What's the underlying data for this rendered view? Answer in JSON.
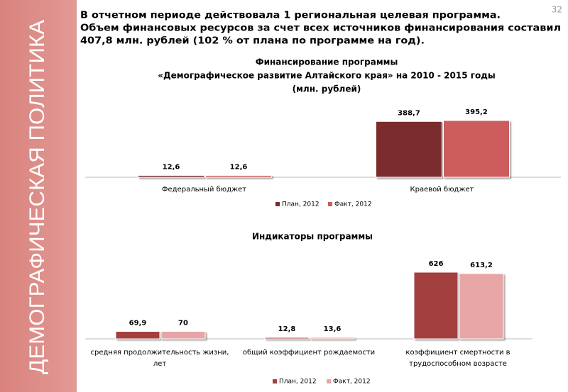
{
  "slide": {
    "section": "ДЕМОГРАФИЧЕСКАЯ ПОЛИТИКА",
    "page_number": "32",
    "text_lines": [
      "В отчетном периоде действовала 1 региональная целевая программа.",
      "Объем финансовых ресурсов за счет всех источников финансирования составил",
      "407,8 млн. рублей (102 % от плана по программе на год)."
    ]
  },
  "chart_data": [
    {
      "type": "bar",
      "title_lines": [
        "Финансирование программы",
        "«Демографическое развитие Алтайского края» на 2010 - 2015 годы",
        "(млн. рублей)"
      ],
      "categories": [
        "Федеральный бюджет",
        "Краевой бюджет"
      ],
      "series": [
        {
          "name": "План, 2012",
          "color": "#7b2c2c",
          "values": [
            12.6,
            388.7
          ],
          "value_labels": [
            "12,6",
            "388,7"
          ]
        },
        {
          "name": "Факт, 2012",
          "color": "#cd5c5c",
          "values": [
            12.6,
            395.2
          ],
          "value_labels": [
            "12,6",
            "395,2"
          ]
        }
      ]
    },
    {
      "type": "bar",
      "title_lines": [
        "Индикаторы программы"
      ],
      "categories": [
        "средняя продолжительность жизни, лет",
        "общий коэффициент рождаемости",
        "коэффициент смертности в трудоспособном возрасте"
      ],
      "series": [
        {
          "name": "План, 2012",
          "color": "#a33f3f",
          "values": [
            69.9,
            12.8,
            626
          ],
          "value_labels": [
            "69,9",
            "12,8",
            "626"
          ]
        },
        {
          "name": "Факт, 2012",
          "color": "#e8a5a5",
          "values": [
            70,
            13.6,
            613.2
          ],
          "value_labels": [
            "70",
            "13,6",
            "613,2"
          ]
        }
      ]
    }
  ]
}
